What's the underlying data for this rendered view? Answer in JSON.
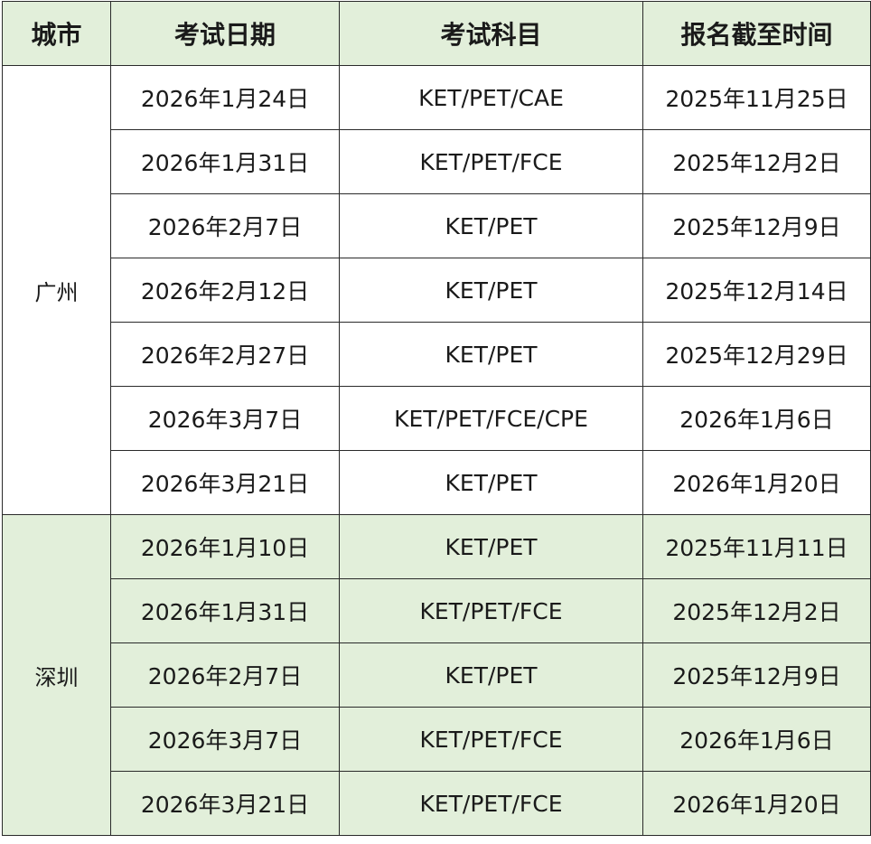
{
  "colors": {
    "header_bg": "#e2efda",
    "shenzhen_bg": "#e2efda",
    "border": "#2a2a2a"
  },
  "headers": [
    "城市",
    "考试日期",
    "考试科目",
    "报名截至时间"
  ],
  "groups": [
    {
      "city": "广州",
      "rows": [
        [
          "2026年1月24日",
          "KET/PET/CAE",
          "2025年11月25日"
        ],
        [
          "2026年1月31日",
          "KET/PET/FCE",
          "2025年12月2日"
        ],
        [
          "2026年2月7日",
          "KET/PET",
          "2025年12月9日"
        ],
        [
          "2026年2月12日",
          "KET/PET",
          "2025年12月14日"
        ],
        [
          "2026年2月27日",
          "KET/PET",
          "2025年12月29日"
        ],
        [
          "2026年3月7日",
          "KET/PET/FCE/CPE",
          "2026年1月6日"
        ],
        [
          "2026年3月21日",
          "KET/PET",
          "2026年1月20日"
        ]
      ]
    },
    {
      "city": "深圳",
      "rows": [
        [
          "2026年1月10日",
          "KET/PET",
          "2025年11月11日"
        ],
        [
          "2026年1月31日",
          "KET/PET/FCE",
          "2025年12月2日"
        ],
        [
          "2026年2月7日",
          "KET/PET",
          "2025年12月9日"
        ],
        [
          "2026年3月7日",
          "KET/PET/FCE",
          "2026年1月6日"
        ],
        [
          "2026年3月21日",
          "KET/PET/FCE",
          "2026年1月20日"
        ]
      ]
    }
  ]
}
